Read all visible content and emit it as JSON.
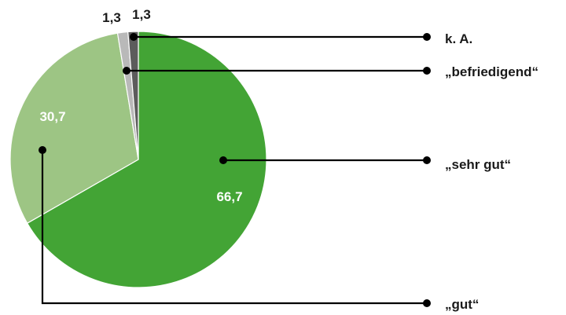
{
  "chart_data": {
    "type": "pie",
    "slices": [
      {
        "label": "„sehr gut“",
        "value": 66.7,
        "value_text": "66,7",
        "color": "#43a435"
      },
      {
        "label": "„gut“",
        "value": 30.7,
        "value_text": "30,7",
        "color": "#9dc584"
      },
      {
        "label": "„befriedigend“",
        "value": 1.3,
        "value_text": "1,3",
        "color": "#b9b9b9"
      },
      {
        "label": "k. A.",
        "value": 1.3,
        "value_text": "1,3",
        "color": "#5c5c5c"
      }
    ],
    "title": "",
    "legend": "right, leader lines"
  }
}
